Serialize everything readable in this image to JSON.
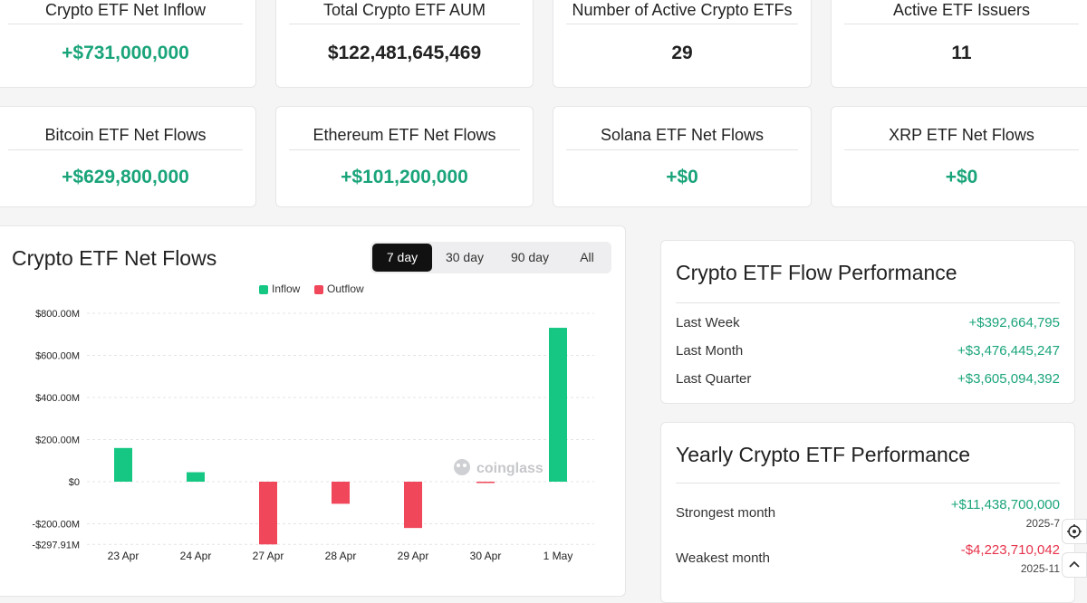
{
  "stats_row1": [
    {
      "label": "Crypto ETF Net Inflow",
      "value": "+$731,000,000",
      "tone": "green"
    },
    {
      "label": "Total Crypto ETF AUM",
      "value": "$122,481,645,469",
      "tone": "dark"
    },
    {
      "label": "Number of Active Crypto ETFs",
      "value": "29",
      "tone": "dark"
    },
    {
      "label": "Active ETF Issuers",
      "value": "11",
      "tone": "dark"
    }
  ],
  "stats_row2": [
    {
      "label": "Bitcoin ETF Net Flows",
      "value": "+$629,800,000",
      "tone": "green"
    },
    {
      "label": "Ethereum ETF Net Flows",
      "value": "+$101,200,000",
      "tone": "green"
    },
    {
      "label": "Solana ETF Net Flows",
      "value": "+$0",
      "tone": "green"
    },
    {
      "label": "XRP ETF Net Flows",
      "value": "+$0",
      "tone": "green"
    }
  ],
  "flows_panel": {
    "title": "Crypto ETF Net Flows",
    "tabs": [
      "7 day",
      "30 day",
      "90 day",
      "All"
    ],
    "active_tab": "7 day",
    "watermark": "coinglass"
  },
  "chart_data": {
    "type": "bar",
    "legend": [
      "Inflow",
      "Outflow"
    ],
    "legend_position": "top-center",
    "categories": [
      "23 Apr",
      "24 Apr",
      "27 Apr",
      "28 Apr",
      "29 Apr",
      "30 Apr",
      "1 May"
    ],
    "values": [
      160,
      45,
      -297.91,
      -105,
      -220,
      -5,
      731
    ],
    "unit": "M",
    "ylim": [
      -297.91,
      800
    ],
    "yticks": [
      800,
      600,
      400,
      200,
      0,
      -200,
      -297.91
    ],
    "ytick_labels": [
      "$800.00M",
      "$600.00M",
      "$400.00M",
      "$200.00M",
      "$0",
      "-$200.00M",
      "-$297.91M"
    ],
    "grid": true,
    "colors": {
      "inflow": "#16c784",
      "outflow": "#f0475a"
    }
  },
  "flow_performance": {
    "title": "Crypto ETF Flow Performance",
    "rows": [
      {
        "label": "Last Week",
        "value": "+$392,664,795"
      },
      {
        "label": "Last Month",
        "value": "+$3,476,445,247"
      },
      {
        "label": "Last Quarter",
        "value": "+$3,605,094,392"
      }
    ]
  },
  "yearly_performance": {
    "title": "Yearly Crypto ETF Performance",
    "strongest": {
      "label": "Strongest month",
      "value": "+$11,438,700,000",
      "date": "2025-7"
    },
    "weakest": {
      "label": "Weakest month",
      "value": "-$4,223,710,042",
      "date": "2025-11"
    }
  },
  "side_buttons": {
    "settings_icon": "gear-icon",
    "scroll_top_icon": "chevron-up-icon"
  }
}
